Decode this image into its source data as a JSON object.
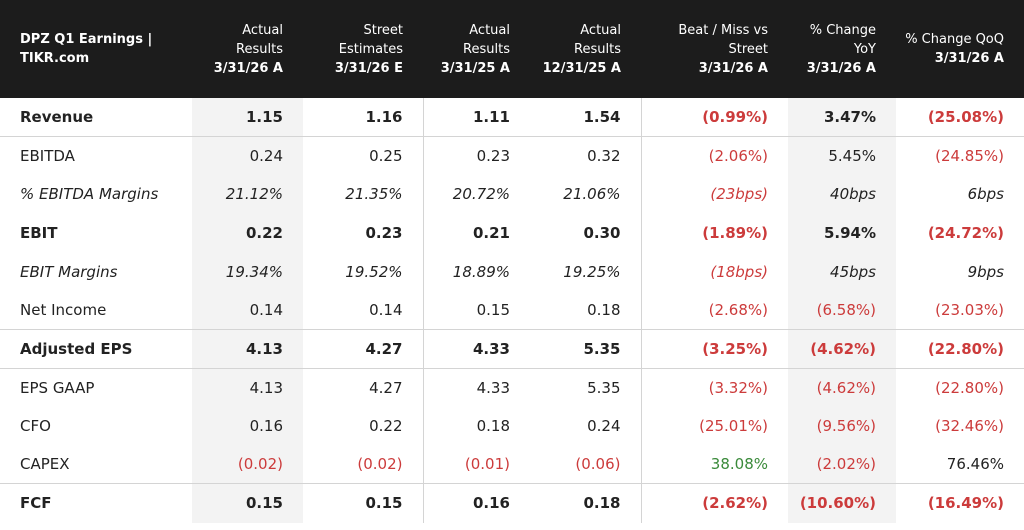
{
  "header": {
    "title": "DPZ Q1 Earnings | TIKR.com",
    "columns": [
      {
        "label": "Actual Results",
        "date": "3/31/26 A"
      },
      {
        "label": "Street Estimates",
        "date": "3/31/26 E"
      },
      {
        "label": "Actual Results",
        "date": "3/31/25 A"
      },
      {
        "label": "Actual Results",
        "date": "12/31/25 A"
      },
      {
        "label": "Beat / Miss vs Street",
        "date": "3/31/26 A"
      },
      {
        "label": "% Change YoY",
        "date": "3/31/26 A"
      },
      {
        "label": "% Change QoQ",
        "date": "3/31/26 A"
      }
    ]
  },
  "rows": [
    {
      "label": "Revenue",
      "values": [
        "1.15",
        "1.16",
        "1.11",
        "1.54",
        "(0.99%)",
        "3.47%",
        "(25.08%)"
      ]
    },
    {
      "label": "EBITDA",
      "values": [
        "0.24",
        "0.25",
        "0.23",
        "0.32",
        "(2.06%)",
        "5.45%",
        "(24.85%)"
      ]
    },
    {
      "label": "% EBITDA Margins",
      "values": [
        "21.12%",
        "21.35%",
        "20.72%",
        "21.06%",
        "(23bps)",
        "40bps",
        "6bps"
      ]
    },
    {
      "label": "EBIT",
      "values": [
        "0.22",
        "0.23",
        "0.21",
        "0.30",
        "(1.89%)",
        "5.94%",
        "(24.72%)"
      ]
    },
    {
      "label": "EBIT Margins",
      "values": [
        "19.34%",
        "19.52%",
        "18.89%",
        "19.25%",
        "(18bps)",
        "45bps",
        "9bps"
      ]
    },
    {
      "label": "Net Income",
      "values": [
        "0.14",
        "0.14",
        "0.15",
        "0.18",
        "(2.68%)",
        "(6.58%)",
        "(23.03%)"
      ]
    },
    {
      "label": "Adjusted EPS",
      "values": [
        "4.13",
        "4.27",
        "4.33",
        "5.35",
        "(3.25%)",
        "(4.62%)",
        "(22.80%)"
      ]
    },
    {
      "label": "EPS GAAP",
      "values": [
        "4.13",
        "4.27",
        "4.33",
        "5.35",
        "(3.32%)",
        "(4.62%)",
        "(22.80%)"
      ]
    },
    {
      "label": "CFO",
      "values": [
        "0.16",
        "0.22",
        "0.18",
        "0.24",
        "(25.01%)",
        "(9.56%)",
        "(32.46%)"
      ]
    },
    {
      "label": "CAPEX",
      "values": [
        "(0.02)",
        "(0.02)",
        "(0.01)",
        "(0.06)",
        "38.08%",
        "(2.02%)",
        "76.46%"
      ]
    },
    {
      "label": "FCF",
      "values": [
        "0.15",
        "0.15",
        "0.16",
        "0.18",
        "(2.62%)",
        "(10.60%)",
        "(16.49%)"
      ]
    }
  ],
  "colors": {
    "header_bg": "#1c1c1c",
    "negative": "#cc3b3b",
    "positive": "#3a8a3a",
    "shade": "#f3f3f3"
  }
}
